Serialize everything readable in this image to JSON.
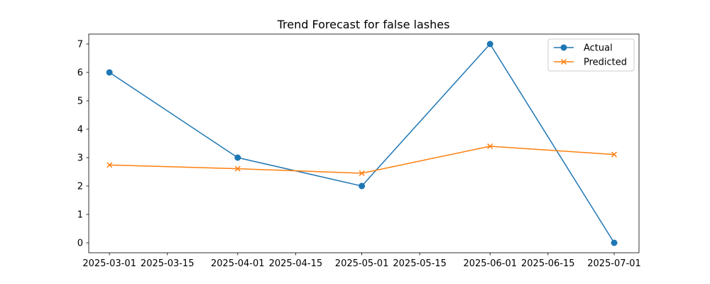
{
  "chart_data": {
    "type": "line",
    "title": "Trend Forecast for false lashes",
    "xlabel": "",
    "ylabel": "",
    "x_type": "date",
    "x": [
      "2025-03-01",
      "2025-04-01",
      "2025-05-01",
      "2025-06-01",
      "2025-07-01"
    ],
    "xlim": [
      "2025-02-24",
      "2025-07-07"
    ],
    "ylim": [
      -0.35,
      7.35
    ],
    "x_ticks": [
      "2025-03-01",
      "2025-03-15",
      "2025-04-01",
      "2025-04-15",
      "2025-05-01",
      "2025-05-15",
      "2025-06-01",
      "2025-06-15",
      "2025-07-01"
    ],
    "y_ticks": [
      0,
      1,
      2,
      3,
      4,
      5,
      6,
      7
    ],
    "grid": false,
    "legend_position": "top-right",
    "series": [
      {
        "name": "Actual",
        "color": "#1f77b4",
        "marker": "circle",
        "values": [
          6,
          3,
          2,
          7,
          0
        ]
      },
      {
        "name": "Predicted",
        "color": "#ff7f0e",
        "marker": "x",
        "values": [
          2.74,
          2.61,
          2.45,
          3.4,
          3.11
        ]
      }
    ]
  }
}
